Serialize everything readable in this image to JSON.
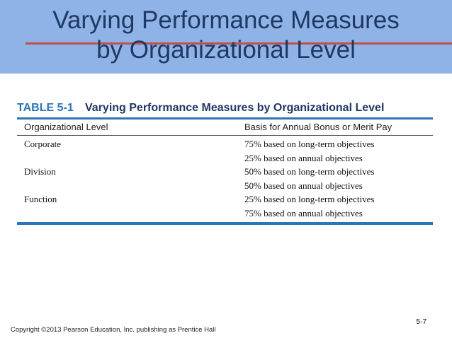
{
  "slide": {
    "title_line1": "Varying Performance Measures",
    "title_line2": "by Organizational Level",
    "slide_number": "5-7",
    "copyright": "Copyright ©2013 Pearson Education, Inc. publishing as Prentice Hall"
  },
  "table": {
    "number": "TABLE 5-1",
    "caption": "Varying Performance Measures by Organizational Level",
    "headers": [
      "Organizational Level",
      "Basis for Annual Bonus or Merit Pay"
    ],
    "rows": [
      [
        "Corporate",
        "75% based on long-term objectives"
      ],
      [
        "",
        "25% based on annual objectives"
      ],
      [
        "Division",
        "50% based on long-term objectives"
      ],
      [
        "",
        "50% based on annual objectives"
      ],
      [
        "Function",
        "25% based on long-term objectives"
      ],
      [
        "",
        "75% based on annual objectives"
      ]
    ]
  },
  "colors": {
    "title_band": "#8fb3e6",
    "title_text": "#1f3864",
    "accent_rule": "#c0504d",
    "table_rule": "#2e74b5"
  }
}
